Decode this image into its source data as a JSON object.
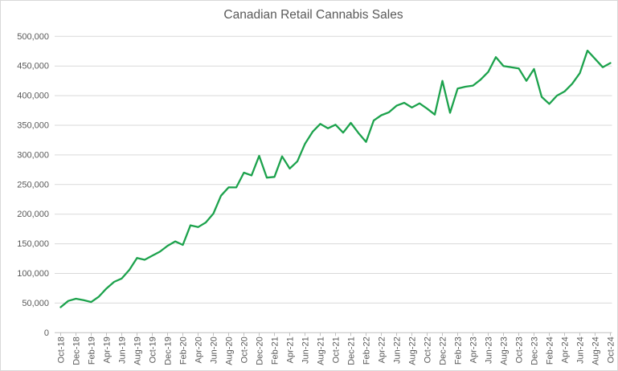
{
  "chart_data": {
    "type": "line",
    "title": "Canadian Retail Cannabis Sales",
    "x": [
      "Oct-18",
      "Nov-18",
      "Dec-18",
      "Jan-19",
      "Feb-19",
      "Mar-19",
      "Apr-19",
      "May-19",
      "Jun-19",
      "Jul-19",
      "Aug-19",
      "Sep-19",
      "Oct-19",
      "Nov-19",
      "Dec-19",
      "Jan-20",
      "Feb-20",
      "Mar-20",
      "Apr-20",
      "May-20",
      "Jun-20",
      "Jul-20",
      "Aug-20",
      "Sep-20",
      "Oct-20",
      "Nov-20",
      "Dec-20",
      "Jan-21",
      "Feb-21",
      "Mar-21",
      "Apr-21",
      "May-21",
      "Jun-21",
      "Jul-21",
      "Aug-21",
      "Sep-21",
      "Oct-21",
      "Nov-21",
      "Dec-21",
      "Jan-22",
      "Feb-22",
      "Mar-22",
      "Apr-22",
      "May-22",
      "Jun-22",
      "Jul-22",
      "Aug-22",
      "Sep-22",
      "Oct-22",
      "Nov-22",
      "Dec-22",
      "Jan-23",
      "Feb-23",
      "Mar-23",
      "Apr-23",
      "May-23",
      "Jun-23",
      "Jul-23",
      "Aug-23",
      "Sep-23",
      "Oct-23",
      "Nov-23",
      "Dec-23",
      "Jan-24",
      "Feb-24",
      "Mar-24",
      "Apr-24",
      "May-24",
      "Jun-24",
      "Jul-24",
      "Aug-24",
      "Sep-24",
      "Oct-24"
    ],
    "values": [
      43100,
      53700,
      57300,
      54900,
      51700,
      60900,
      74600,
      85800,
      91500,
      106100,
      126100,
      123000,
      129900,
      136700,
      146600,
      154100,
      148100,
      181100,
      178200,
      185900,
      200900,
      231100,
      245300,
      245100,
      270000,
      265500,
      298400,
      261700,
      262900,
      297600,
      277000,
      289100,
      318700,
      339000,
      352300,
      344900,
      351000,
      337500,
      354000,
      337000,
      322000,
      358000,
      367000,
      372000,
      383000,
      388000,
      380000,
      387000,
      378000,
      368000,
      425000,
      371000,
      412000,
      415000,
      417000,
      427000,
      440000,
      465000,
      450000,
      448000,
      446000,
      425000,
      445000,
      398000,
      386000,
      400000,
      407000,
      420000,
      438000,
      476000,
      462000,
      448000,
      455000
    ],
    "xlabel": "",
    "ylabel": "",
    "ylim": [
      0,
      500000
    ],
    "ytick_step": 50000,
    "x_tick_every": 2,
    "grid": true,
    "legend": false,
    "colors": {
      "line": "#1ca24c",
      "gridline": "#d9d9d9",
      "axis_line": "#bfbfbf",
      "text": "#595959",
      "background": "#ffffff"
    }
  }
}
